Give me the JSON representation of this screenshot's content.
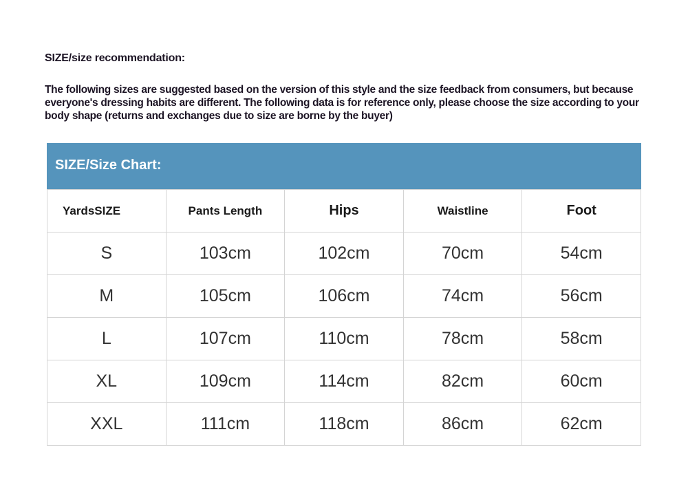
{
  "recommendation": {
    "title": "SIZE/size recommendation:",
    "text": "The following sizes are suggested based on the version of this style and the size feedback from consumers, but because everyone's dressing habits are different. The following data is for reference only, please choose the size according to your body shape (returns and exchanges due to size are borne by the buyer)"
  },
  "size_chart": {
    "title": "SIZE/Size Chart:",
    "header_color": "#5594bc",
    "columns": [
      "YardsSIZE",
      "Pants Length",
      "Hips",
      "Waistline",
      "Foot"
    ],
    "rows": [
      [
        "S",
        "103cm",
        "102cm",
        "70cm",
        "54cm"
      ],
      [
        "M",
        "105cm",
        "106cm",
        "74cm",
        "56cm"
      ],
      [
        "L",
        "107cm",
        "110cm",
        "78cm",
        "58cm"
      ],
      [
        "XL",
        "109cm",
        "114cm",
        "82cm",
        "60cm"
      ],
      [
        "XXL",
        "111cm",
        "118cm",
        "86cm",
        "62cm"
      ]
    ]
  }
}
